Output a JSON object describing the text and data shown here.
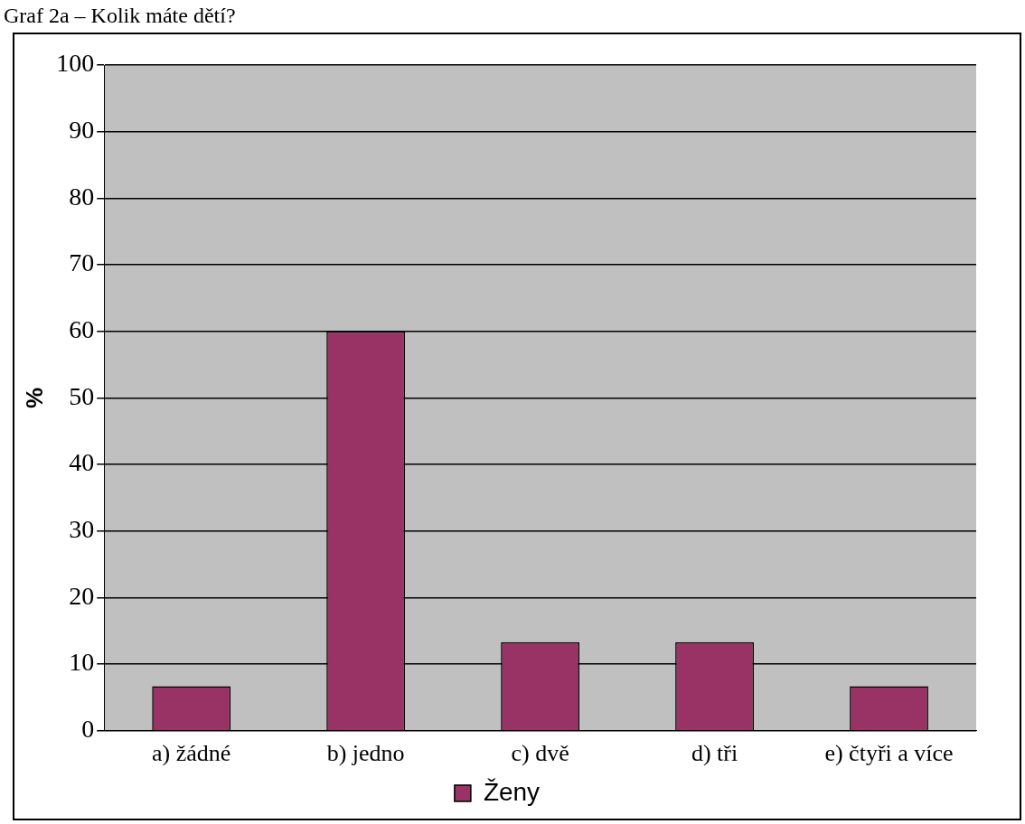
{
  "chart_data": {
    "type": "bar",
    "title": "Graf 2a – Kolik máte dětí?",
    "ylabel": "%",
    "categories": [
      "a) žádné",
      "b) jedno",
      "c) dvě",
      "d) tři",
      "e) čtyři a více"
    ],
    "series": [
      {
        "name": "Ženy",
        "color": "#993366",
        "values": [
          6.7,
          60,
          13.3,
          13.3,
          6.7
        ]
      }
    ],
    "ylim": [
      0,
      100
    ],
    "yticks": [
      0,
      10,
      20,
      30,
      40,
      50,
      60,
      70,
      80,
      90,
      100
    ],
    "grid": "y",
    "legend": "bottom"
  }
}
